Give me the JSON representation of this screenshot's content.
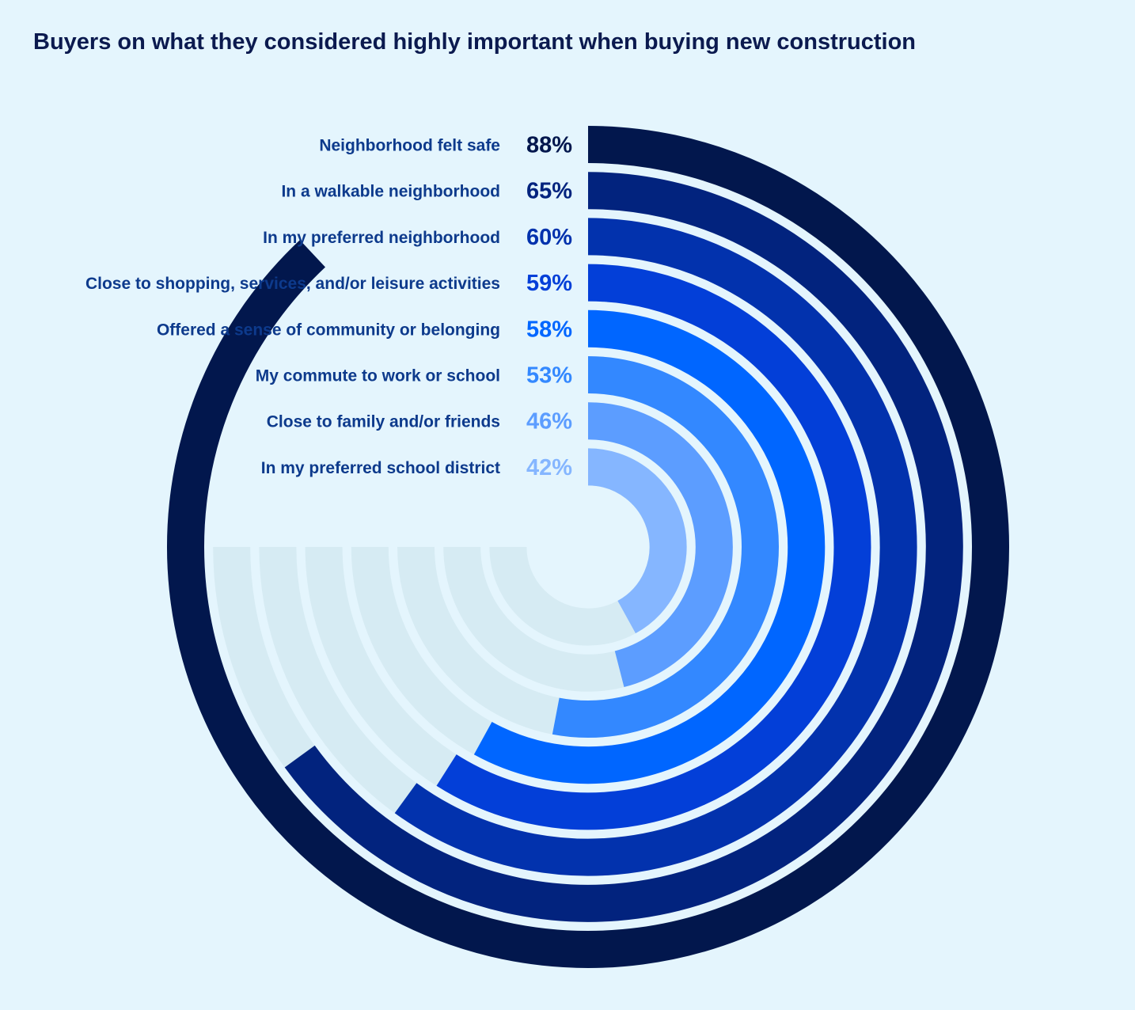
{
  "chart_data": {
    "type": "radial-bar",
    "title": "Buyers on what they considered highly important when buying new construction",
    "unit": "%",
    "max": 100,
    "categories": [
      "Neighborhood felt safe",
      "In a walkable neighborhood",
      "In my preferred neighborhood",
      "Close to shopping, services, and/or leisure activities",
      "Offered a sense of community or belonging",
      "My commute to work or school",
      "Close to family and/or friends",
      "In my preferred school district"
    ],
    "values": [
      88,
      65,
      60,
      59,
      58,
      53,
      46,
      42
    ],
    "value_labels": [
      "88%",
      "65%",
      "60%",
      "59%",
      "58%",
      "53%",
      "46%",
      "42%"
    ],
    "colors": [
      "#02174d",
      "#02237e",
      "#0232ad",
      "#033fd8",
      "#0066ff",
      "#3388ff",
      "#5c9dff",
      "#85b6ff"
    ],
    "track_color": "#d6ebf3",
    "background_color": "#e4f5fd",
    "label_color": "#0d3a8c",
    "title_color": "#0b1a4f"
  }
}
